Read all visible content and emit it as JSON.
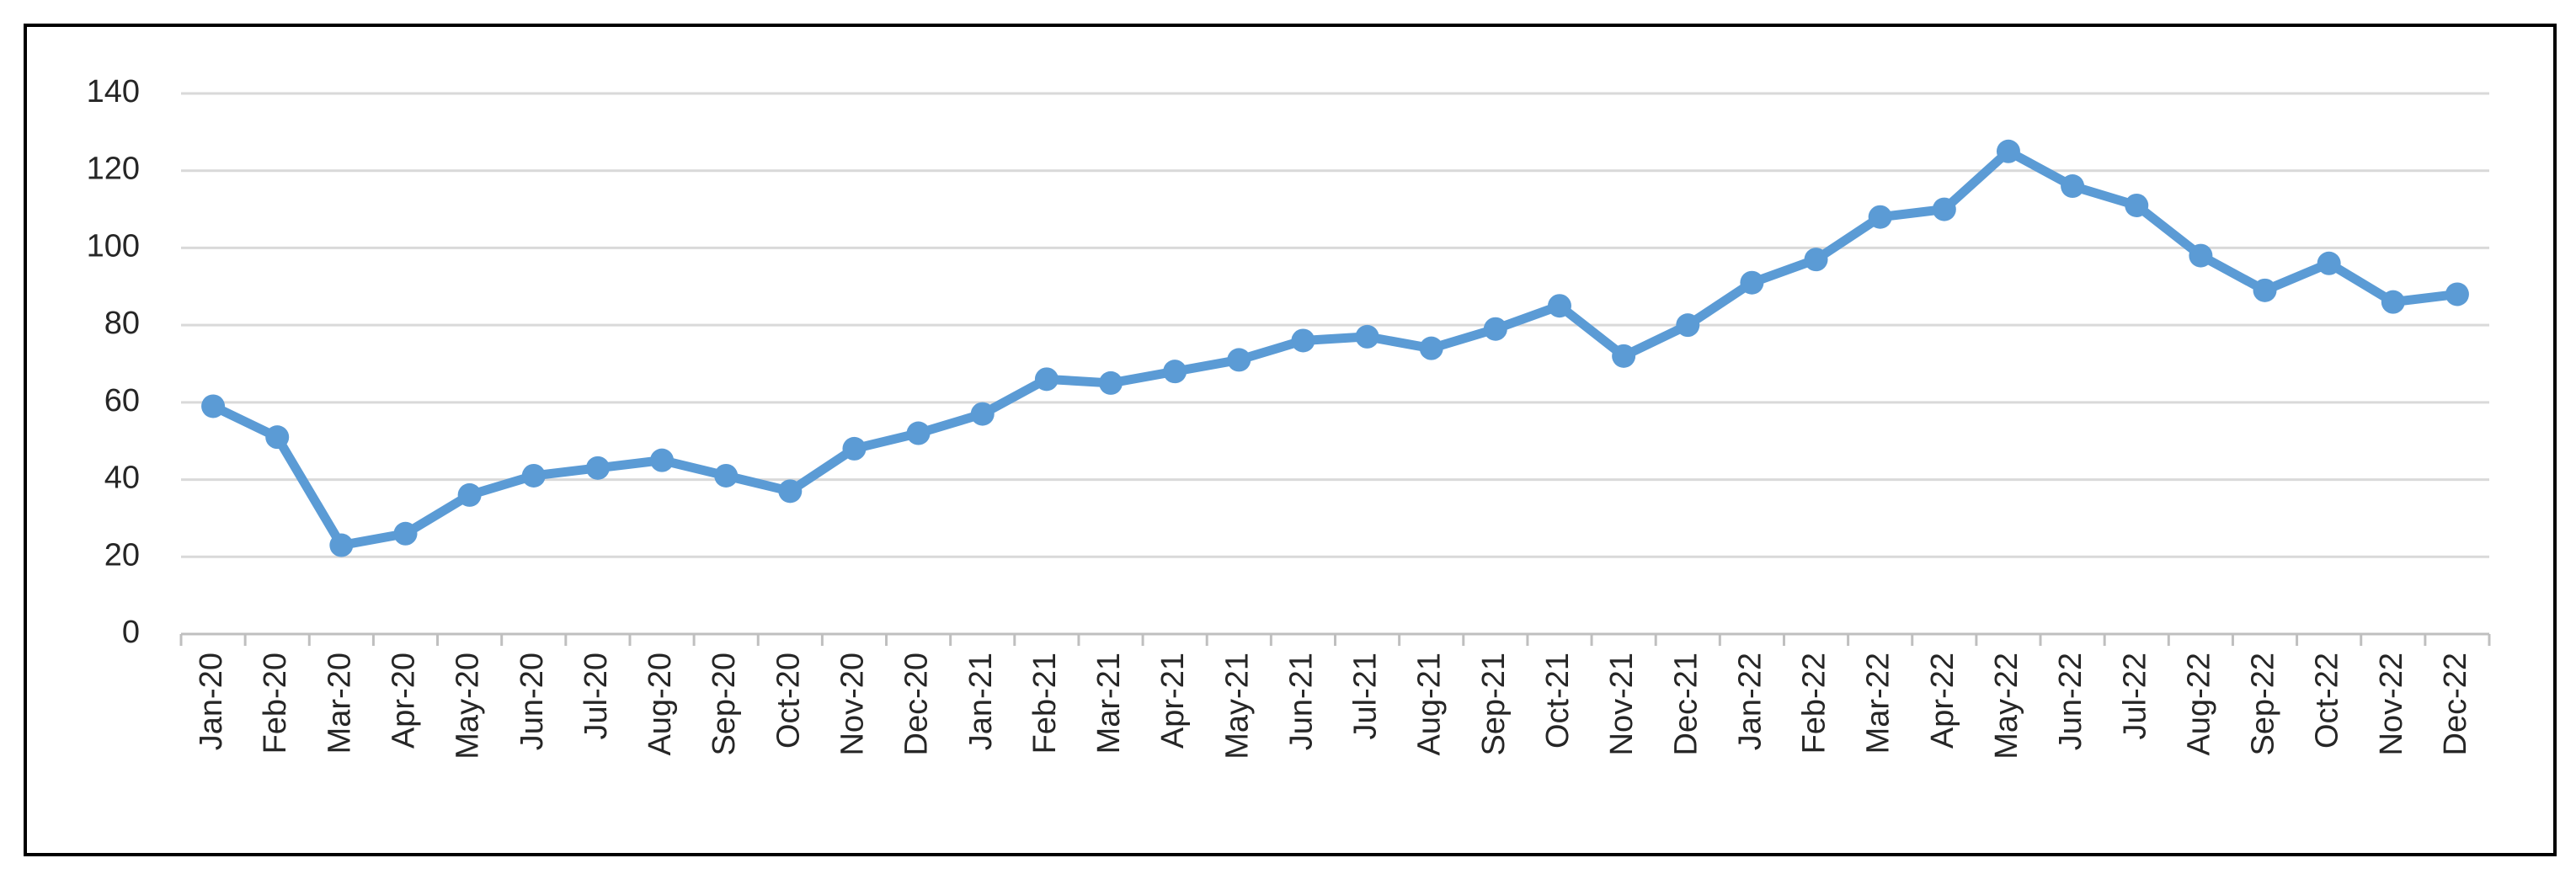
{
  "chart_data": {
    "type": "line",
    "categories": [
      "Jan-20",
      "Feb-20",
      "Mar-20",
      "Apr-20",
      "May-20",
      "Jun-20",
      "Jul-20",
      "Aug-20",
      "Sep-20",
      "Oct-20",
      "Nov-20",
      "Dec-20",
      "Jan-21",
      "Feb-21",
      "Mar-21",
      "Apr-21",
      "May-21",
      "Jun-21",
      "Jul-21",
      "Aug-21",
      "Sep-21",
      "Oct-21",
      "Nov-21",
      "Dec-21",
      "Jan-22",
      "Feb-22",
      "Mar-22",
      "Apr-22",
      "May-22",
      "Jun-22",
      "Jul-22",
      "Aug-22",
      "Sep-22",
      "Oct-22",
      "Nov-22",
      "Dec-22"
    ],
    "values": [
      59,
      51,
      23,
      26,
      36,
      41,
      43,
      45,
      41,
      37,
      48,
      52,
      57,
      66,
      65,
      68,
      71,
      76,
      77,
      74,
      79,
      85,
      72,
      80,
      91,
      97,
      108,
      110,
      125,
      116,
      111,
      98,
      89,
      96,
      86,
      88
    ],
    "color": "#5b9bd5",
    "ylim": [
      0,
      140
    ],
    "yticks": [
      0,
      20,
      40,
      60,
      80,
      100,
      120,
      140
    ],
    "grid": true
  }
}
